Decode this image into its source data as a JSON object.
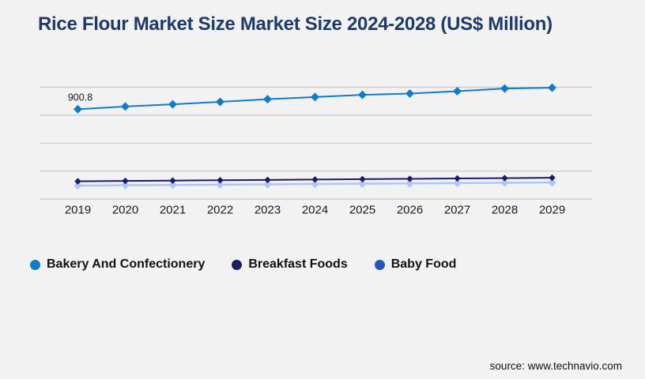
{
  "page": {
    "background_color": "#f2f2f3",
    "title_color": "#1e3a68",
    "gridline_color": "#c7c7ca"
  },
  "footer": {
    "source": "source: www.technavio.com"
  },
  "chart_data": {
    "type": "line",
    "title": "Rice Flour Market Size Market Size 2024-2028 (US$ Million)",
    "xlabel": "",
    "ylabel": "",
    "categories": [
      "2019",
      "2020",
      "2021",
      "2022",
      "2023",
      "2024",
      "2025",
      "2026",
      "2027",
      "2028",
      "2029"
    ],
    "series": [
      {
        "name": "Bakery And Confectionery",
        "values": [
          900.8,
          928,
          950,
          975,
          1001,
          1023,
          1045,
          1058,
          1082,
          1108,
          1116
        ],
        "line_color": "#127bc8",
        "legend_color": "#127bc8",
        "marker": "diamond"
      },
      {
        "name": "Breakfast Foods",
        "values": [
          178,
          182,
          185,
          189,
          192,
          196,
          200,
          203,
          207,
          210,
          214
        ],
        "line_color": "#1b1b68",
        "legend_color": "#1b1b68",
        "marker": "diamond"
      },
      {
        "name": "Baby Food",
        "values": [
          135,
          138,
          141,
          144,
          147,
          151,
          154,
          157,
          160,
          163,
          166
        ],
        "line_color": "#aac8f0",
        "legend_color": "#2856b8",
        "marker": "diamond"
      }
    ],
    "point_labels": [
      {
        "series": "Bakery And Confectionery",
        "category": "2019",
        "text": "900.8",
        "value": 900.8
      }
    ],
    "ylim": [
      0,
      1120
    ],
    "y_axis_tick_labels": "none",
    "grid": "horizontal-only",
    "gridline_count": 5,
    "legend_position": "bottom-left",
    "legend_marker": "circle"
  }
}
